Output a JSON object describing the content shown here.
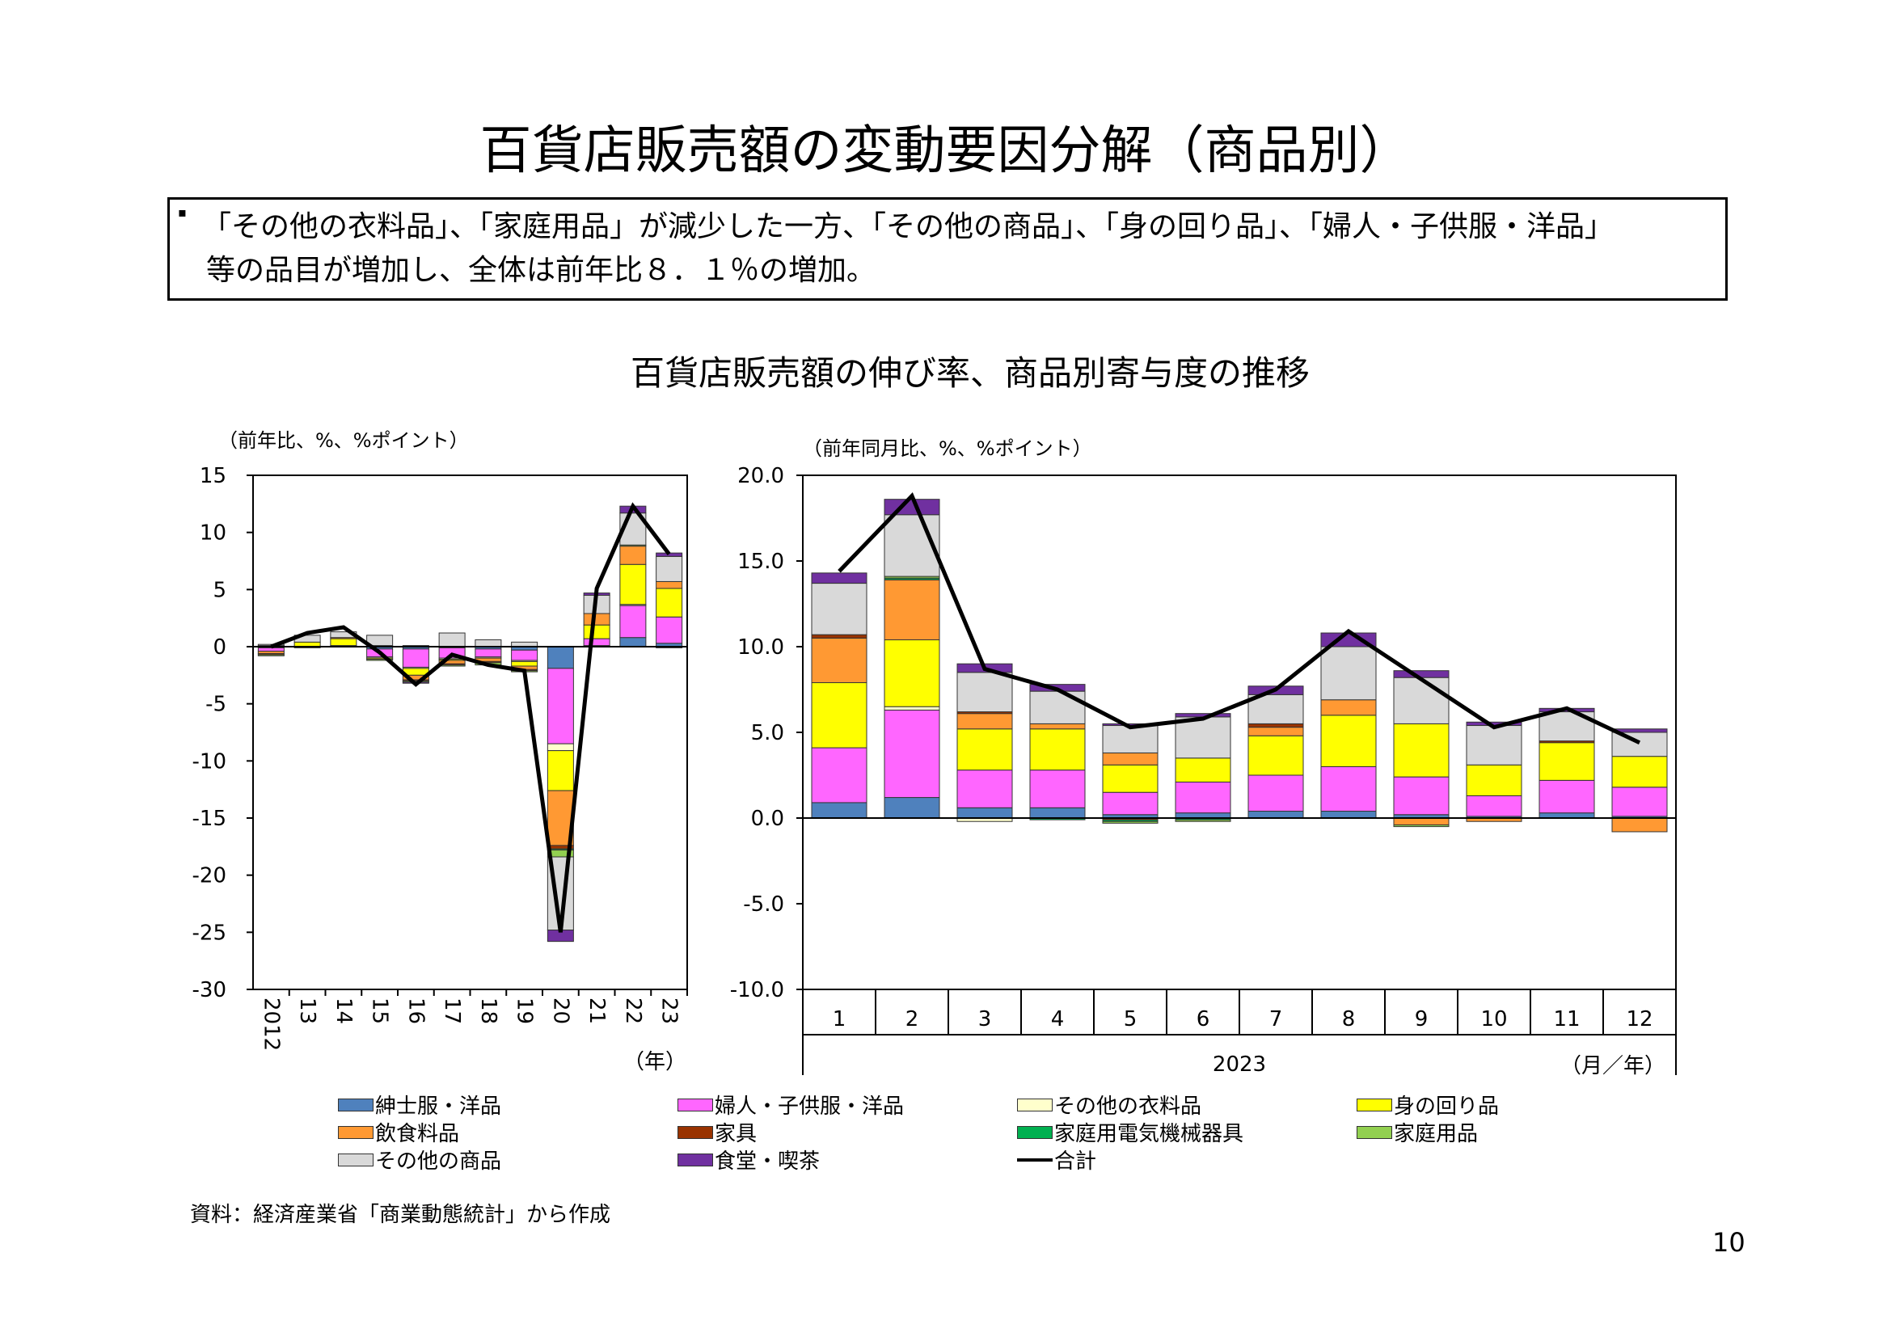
{
  "title": "百貨店販売額の変動要因分解（商品別）",
  "summary": {
    "bullet": "▪",
    "line1": "「その他の衣料品」、「家庭用品」が減少した一方、「その他の商品」、「身の回り品」、「婦人・子供服・洋品」",
    "line2": "等の品目が増加し、全体は前年比８．１％の増加。"
  },
  "charts_title": "百貨店販売額の伸び率、商品別寄与度の推移",
  "colors": {
    "mens": "#4f81bd",
    "womens": "#ff66ff",
    "other_clothing": "#ffffcc",
    "accessories": "#ffff00",
    "food": "#ff9933",
    "furniture": "#993300",
    "appliances": "#00b050",
    "household": "#92d050",
    "other_goods": "#d9d9d9",
    "restaurant": "#7030a0",
    "total": "#000000"
  },
  "chart_data": [
    {
      "type": "bar",
      "stacked": true,
      "with_line": "合計",
      "ylabel": "（前年比、%、%ポイント）",
      "xlabel": "（年）",
      "ylim": [
        -30,
        15
      ],
      "ytick_labels": [
        "15",
        "10",
        "5",
        "0",
        "-5",
        "-10",
        "-15",
        "-20",
        "-25",
        "-30"
      ],
      "yticks": [
        15,
        10,
        5,
        0,
        -5,
        -10,
        -15,
        -20,
        -25,
        -30
      ],
      "categories": [
        "2012",
        "13",
        "14",
        "15",
        "16",
        "17",
        "18",
        "19",
        "20",
        "21",
        "22",
        "23"
      ],
      "series": [
        {
          "name": "紳士服・洋品",
          "key": "mens",
          "values": [
            -0.1,
            0.0,
            0.1,
            -0.2,
            -0.2,
            -0.1,
            -0.2,
            -0.3,
            -1.9,
            0.1,
            0.8,
            0.3
          ]
        },
        {
          "name": "婦人・子供服・洋品",
          "key": "womens",
          "values": [
            -0.3,
            -0.1,
            0.0,
            -0.7,
            -1.6,
            -0.9,
            -0.7,
            -0.9,
            -6.6,
            0.6,
            2.8,
            2.3
          ]
        },
        {
          "name": "その他の衣料品",
          "key": "other_clothing",
          "values": [
            0.0,
            0.0,
            0.0,
            -0.1,
            -0.1,
            -0.1,
            -0.1,
            -0.1,
            -0.6,
            0.0,
            0.1,
            0.0
          ]
        },
        {
          "name": "身の回り品",
          "key": "accessories",
          "values": [
            0.1,
            0.4,
            0.6,
            -0.1,
            -0.6,
            -0.1,
            0.0,
            -0.4,
            -3.5,
            1.2,
            3.5,
            2.5
          ]
        },
        {
          "name": "飲食料品",
          "key": "food",
          "values": [
            -0.2,
            0.0,
            0.1,
            0.1,
            -0.4,
            -0.3,
            -0.3,
            -0.3,
            -4.8,
            1.0,
            1.6,
            0.6
          ]
        },
        {
          "name": "家具",
          "key": "furniture",
          "values": [
            -0.1,
            0.0,
            0.0,
            0.0,
            -0.1,
            -0.1,
            -0.1,
            -0.1,
            -0.3,
            0.0,
            0.0,
            0.0
          ]
        },
        {
          "name": "家庭用電気機械器具",
          "key": "appliances",
          "values": [
            0.0,
            0.0,
            0.0,
            0.0,
            0.0,
            0.0,
            0.0,
            0.0,
            -0.1,
            0.0,
            0.0,
            0.0
          ]
        },
        {
          "name": "家庭用品",
          "key": "household",
          "values": [
            -0.1,
            0.0,
            0.0,
            -0.1,
            -0.1,
            -0.1,
            -0.2,
            -0.1,
            -0.6,
            0.0,
            0.1,
            -0.1
          ]
        },
        {
          "name": "その他の商品",
          "key": "other_goods",
          "values": [
            0.1,
            0.6,
            0.5,
            0.9,
            0.1,
            1.2,
            0.6,
            0.4,
            -6.4,
            1.6,
            2.8,
            2.2
          ]
        },
        {
          "name": "食堂・喫茶",
          "key": "restaurant",
          "values": [
            0.0,
            0.0,
            0.0,
            0.0,
            -0.1,
            0.0,
            0.0,
            0.0,
            -1.0,
            0.2,
            0.6,
            0.3
          ]
        }
      ],
      "total": {
        "name": "合計",
        "values": [
          0.0,
          1.2,
          1.7,
          -0.5,
          -3.3,
          -0.7,
          -1.6,
          -2.1,
          -25.0,
          5.1,
          12.3,
          8.1
        ]
      }
    },
    {
      "type": "bar",
      "stacked": true,
      "with_line": "合計",
      "ylabel": "（前年同月比、%、%ポイント）",
      "xlabel": "（月／年）",
      "year_label": "2023",
      "ylim": [
        -10,
        20
      ],
      "ytick_labels": [
        "20.0",
        "15.0",
        "10.0",
        "5.0",
        "0.0",
        "-5.0",
        "-10.0"
      ],
      "yticks": [
        20,
        15,
        10,
        5,
        0,
        -5,
        -10
      ],
      "categories": [
        "1",
        "2",
        "3",
        "4",
        "5",
        "6",
        "7",
        "8",
        "9",
        "10",
        "11",
        "12"
      ],
      "series": [
        {
          "name": "紳士服・洋品",
          "key": "mens",
          "values": [
            0.9,
            1.2,
            0.6,
            0.6,
            0.2,
            0.3,
            0.4,
            0.4,
            0.2,
            0.1,
            0.3,
            0.1
          ]
        },
        {
          "name": "婦人・子供服・洋品",
          "key": "womens",
          "values": [
            3.2,
            5.1,
            2.2,
            2.2,
            1.3,
            1.8,
            2.1,
            2.6,
            2.2,
            1.2,
            1.9,
            1.7
          ]
        },
        {
          "name": "その他の衣料品",
          "key": "other_clothing",
          "values": [
            0.0,
            0.2,
            -0.2,
            0.0,
            0.0,
            0.0,
            0.0,
            0.0,
            0.0,
            0.0,
            0.0,
            0.0
          ]
        },
        {
          "name": "身の回り品",
          "key": "accessories",
          "values": [
            3.8,
            3.9,
            2.4,
            2.4,
            1.6,
            1.4,
            2.3,
            3.0,
            3.1,
            1.8,
            2.2,
            1.8
          ]
        },
        {
          "name": "飲食料品",
          "key": "food",
          "values": [
            2.6,
            3.5,
            0.9,
            0.3,
            0.7,
            0.0,
            0.5,
            0.9,
            -0.4,
            -0.2,
            0.0,
            -0.8
          ]
        },
        {
          "name": "家具",
          "key": "furniture",
          "values": [
            0.2,
            0.0,
            0.1,
            0.0,
            -0.1,
            0.0,
            0.2,
            0.0,
            0.0,
            0.0,
            0.1,
            0.0
          ]
        },
        {
          "name": "家庭用電気機械器具",
          "key": "appliances",
          "values": [
            0.0,
            0.1,
            0.0,
            -0.1,
            -0.1,
            -0.1,
            0.0,
            0.0,
            0.0,
            0.0,
            0.0,
            0.0
          ]
        },
        {
          "name": "家庭用品",
          "key": "household",
          "values": [
            0.0,
            0.1,
            0.0,
            0.0,
            -0.1,
            -0.1,
            0.0,
            0.0,
            -0.1,
            0.0,
            0.0,
            0.0
          ]
        },
        {
          "name": "その他の商品",
          "key": "other_goods",
          "values": [
            3.0,
            3.6,
            2.3,
            1.9,
            1.6,
            2.4,
            1.7,
            3.1,
            2.7,
            2.3,
            1.7,
            1.4
          ]
        },
        {
          "name": "食堂・喫茶",
          "key": "restaurant",
          "values": [
            0.6,
            0.9,
            0.5,
            0.4,
            0.1,
            0.2,
            0.5,
            0.8,
            0.4,
            0.2,
            0.2,
            0.2
          ]
        }
      ],
      "total": {
        "name": "合計",
        "values": [
          14.4,
          18.8,
          8.7,
          7.5,
          5.3,
          5.8,
          7.5,
          10.9,
          8.1,
          5.3,
          6.4,
          4.4
        ]
      }
    }
  ],
  "legend": [
    {
      "label": "紳士服・洋品",
      "key": "mens"
    },
    {
      "label": "婦人・子供服・洋品",
      "key": "womens"
    },
    {
      "label": "その他の衣料品",
      "key": "other_clothing"
    },
    {
      "label": "身の回り品",
      "key": "accessories"
    },
    {
      "label": "飲食料品",
      "key": "food"
    },
    {
      "label": "家具",
      "key": "furniture"
    },
    {
      "label": "家庭用電気機械器具",
      "key": "appliances"
    },
    {
      "label": "家庭用品",
      "key": "household"
    },
    {
      "label": "その他の商品",
      "key": "other_goods"
    },
    {
      "label": "食堂・喫茶",
      "key": "restaurant"
    },
    {
      "label": "合計",
      "key": "total",
      "line": true
    }
  ],
  "source": "資料：経済産業省「商業動態統計」から作成",
  "page_number": "10"
}
